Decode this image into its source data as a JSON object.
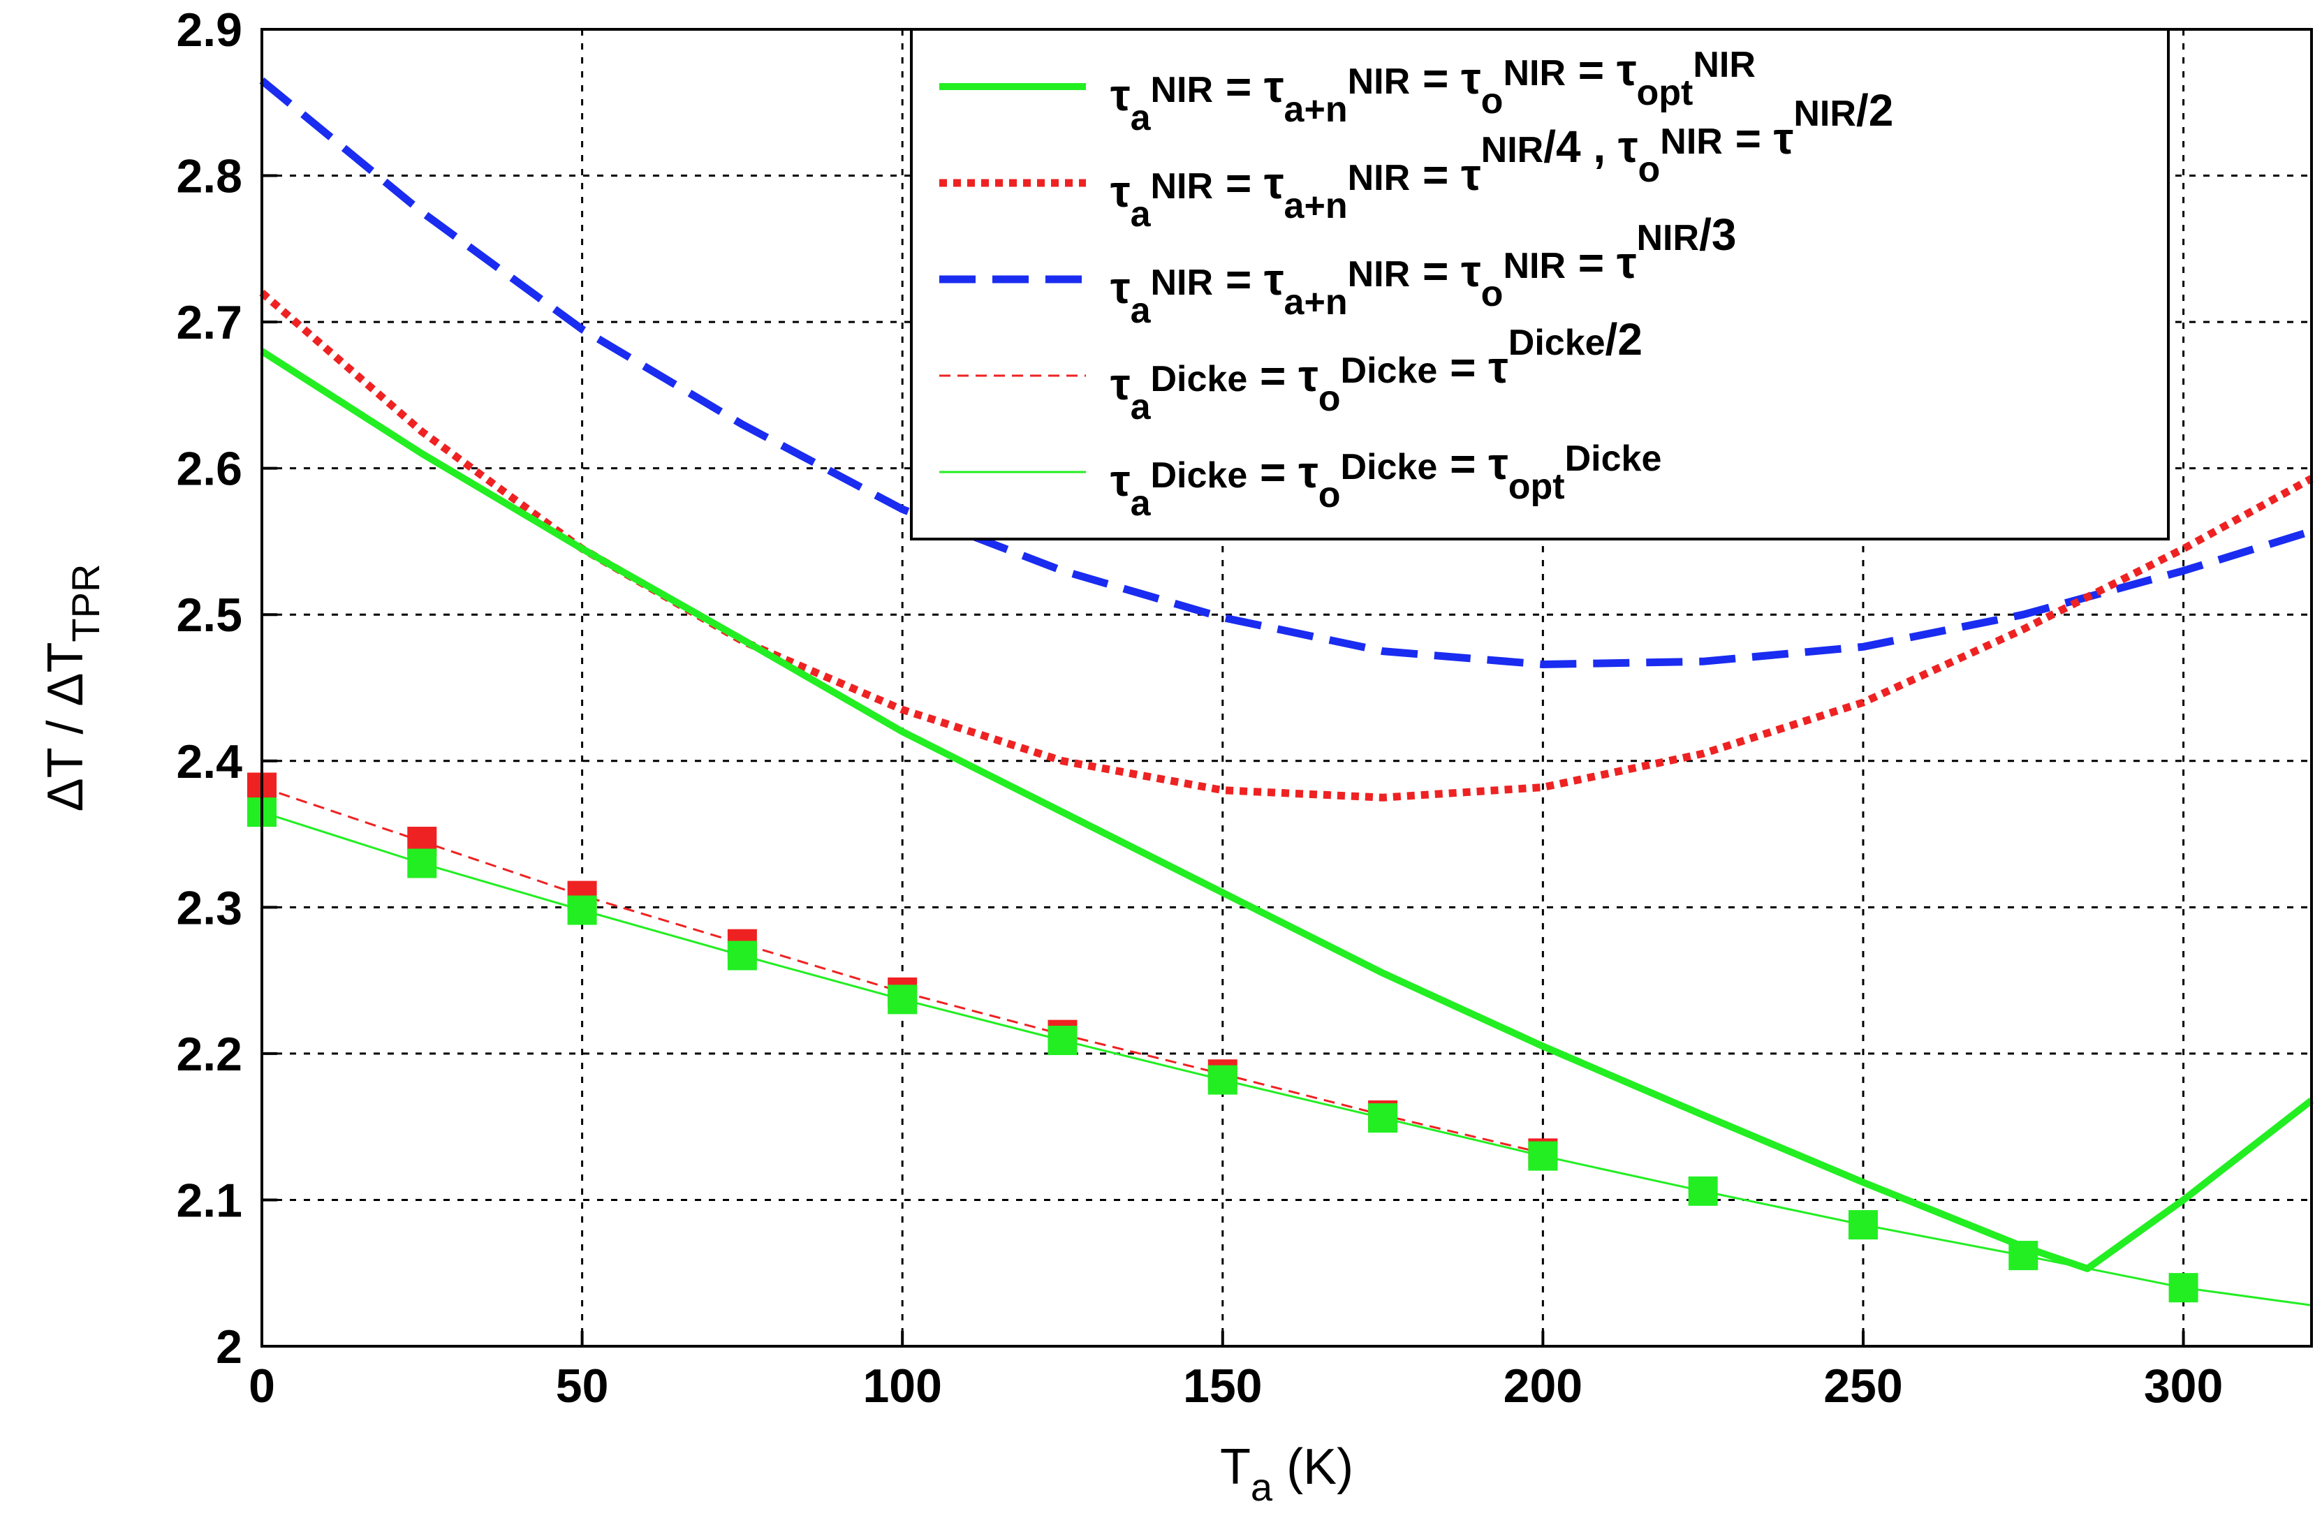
{
  "chart_data": {
    "type": "line",
    "title": "",
    "xlabel": "T",
    "xlabel_sub": "a",
    "xlabel_unit": " (K)",
    "ylabel": "ΔT / ΔT",
    "ylabel_sub": "TPR",
    "xlim": [
      0,
      320
    ],
    "ylim": [
      2.0,
      2.9
    ],
    "xticks": [
      0,
      50,
      100,
      150,
      200,
      250,
      300
    ],
    "yticks": [
      2.0,
      2.1,
      2.2,
      2.3,
      2.4,
      2.5,
      2.6,
      2.7,
      2.8,
      2.9
    ],
    "xtick_labels": [
      "0",
      "50",
      "100",
      "150",
      "200",
      "250",
      "300"
    ],
    "ytick_labels": [
      "2",
      "2.1",
      "2.2",
      "2.3",
      "2.4",
      "2.5",
      "2.6",
      "2.7",
      "2.8",
      "2.9"
    ],
    "grid": true,
    "legend_position": "top-right",
    "colors": {
      "green": "#22ee22",
      "red": "#ee2222",
      "blue": "#1a2cf0",
      "grid": "#000000"
    },
    "series": [
      {
        "name": "NIR all equal optimal",
        "style": "solid-thick",
        "color": "#22ee22",
        "legend": {
          "parts": [
            {
              "t": "τ"
            },
            {
              "t": "a",
              "sub": true
            },
            {
              "t": "NIR",
              "sup": true
            },
            {
              "t": " = τ"
            },
            {
              "t": "a+n",
              "sub": true
            },
            {
              "t": "NIR",
              "sup": true
            },
            {
              "t": " = τ"
            },
            {
              "t": "o",
              "sub": true
            },
            {
              "t": "NIR",
              "sup": true
            },
            {
              "t": " = τ"
            },
            {
              "t": "opt",
              "sub": true
            },
            {
              "t": "NIR",
              "sup": true
            }
          ]
        },
        "x": [
          0,
          25,
          50,
          75,
          100,
          125,
          150,
          175,
          200,
          225,
          250,
          275,
          285,
          300,
          320
        ],
        "y": [
          2.68,
          2.61,
          2.545,
          2.483,
          2.42,
          2.365,
          2.31,
          2.255,
          2.205,
          2.158,
          2.112,
          2.068,
          2.053,
          2.1,
          2.168
        ]
      },
      {
        "name": "NIR quarter / half",
        "style": "dotted-thick",
        "color": "#ee2222",
        "legend": {
          "parts": [
            {
              "t": "τ"
            },
            {
              "t": "a",
              "sub": true
            },
            {
              "t": "NIR",
              "sup": true
            },
            {
              "t": " = τ"
            },
            {
              "t": "a+n",
              "sub": true
            },
            {
              "t": "NIR",
              "sup": true
            },
            {
              "t": " = τ"
            },
            {
              "t": "NIR",
              "sup": true
            },
            {
              "t": "/4 , τ"
            },
            {
              "t": "o",
              "sub": true
            },
            {
              "t": "NIR",
              "sup": true
            },
            {
              "t": " = τ"
            },
            {
              "t": "NIR",
              "sup": true
            },
            {
              "t": "/2"
            }
          ]
        },
        "x": [
          0,
          25,
          50,
          75,
          100,
          125,
          150,
          175,
          200,
          225,
          250,
          275,
          300,
          320
        ],
        "y": [
          2.72,
          2.625,
          2.545,
          2.482,
          2.435,
          2.4,
          2.38,
          2.375,
          2.382,
          2.405,
          2.44,
          2.49,
          2.545,
          2.593
        ]
      },
      {
        "name": "NIR third",
        "style": "dashed-thick",
        "color": "#1a2cf0",
        "legend": {
          "parts": [
            {
              "t": "τ"
            },
            {
              "t": "a",
              "sub": true
            },
            {
              "t": "NIR",
              "sup": true
            },
            {
              "t": " = τ"
            },
            {
              "t": "a+n",
              "sub": true
            },
            {
              "t": "NIR",
              "sup": true
            },
            {
              "t": " = τ"
            },
            {
              "t": "o",
              "sub": true
            },
            {
              "t": "NIR",
              "sup": true
            },
            {
              "t": " = τ"
            },
            {
              "t": "NIR",
              "sup": true
            },
            {
              "t": "/3"
            }
          ]
        },
        "x": [
          0,
          25,
          50,
          75,
          100,
          125,
          150,
          175,
          200,
          225,
          250,
          275,
          300,
          320
        ],
        "y": [
          2.865,
          2.775,
          2.695,
          2.63,
          2.572,
          2.53,
          2.498,
          2.475,
          2.466,
          2.468,
          2.478,
          2.5,
          2.53,
          2.557
        ]
      },
      {
        "name": "Dicke half",
        "style": "dashed-thin",
        "color": "#ee2222",
        "markers": true,
        "legend": {
          "parts": [
            {
              "t": "τ"
            },
            {
              "t": "a",
              "sub": true
            },
            {
              "t": "Dicke",
              "sup": true
            },
            {
              "t": " = τ"
            },
            {
              "t": "o",
              "sub": true
            },
            {
              "t": "Dicke",
              "sup": true
            },
            {
              "t": " = τ"
            },
            {
              "t": "Dicke",
              "sup": true
            },
            {
              "t": "/2"
            }
          ]
        },
        "x": [
          0,
          25,
          50,
          75,
          100,
          125,
          150,
          175,
          200
        ],
        "y": [
          2.382,
          2.345,
          2.308,
          2.275,
          2.242,
          2.213,
          2.186,
          2.158,
          2.132
        ]
      },
      {
        "name": "Dicke optimal",
        "style": "solid-thin",
        "color": "#22ee22",
        "markers": true,
        "legend": {
          "parts": [
            {
              "t": "τ"
            },
            {
              "t": "a",
              "sub": true
            },
            {
              "t": "Dicke",
              "sup": true
            },
            {
              "t": " = τ"
            },
            {
              "t": "o",
              "sub": true
            },
            {
              "t": "Dicke",
              "sup": true
            },
            {
              "t": " = τ"
            },
            {
              "t": "opt",
              "sub": true
            },
            {
              "t": "Dicke",
              "sup": true
            }
          ]
        },
        "x": [
          0,
          25,
          50,
          75,
          100,
          125,
          150,
          175,
          200,
          225,
          250,
          275,
          300,
          320
        ],
        "y": [
          2.365,
          2.33,
          2.298,
          2.267,
          2.237,
          2.209,
          2.182,
          2.156,
          2.13,
          2.106,
          2.083,
          2.062,
          2.04,
          2.028
        ],
        "marker_x": [
          0,
          25,
          50,
          75,
          100,
          125,
          150,
          175,
          200,
          225,
          250,
          275,
          300
        ]
      }
    ]
  }
}
